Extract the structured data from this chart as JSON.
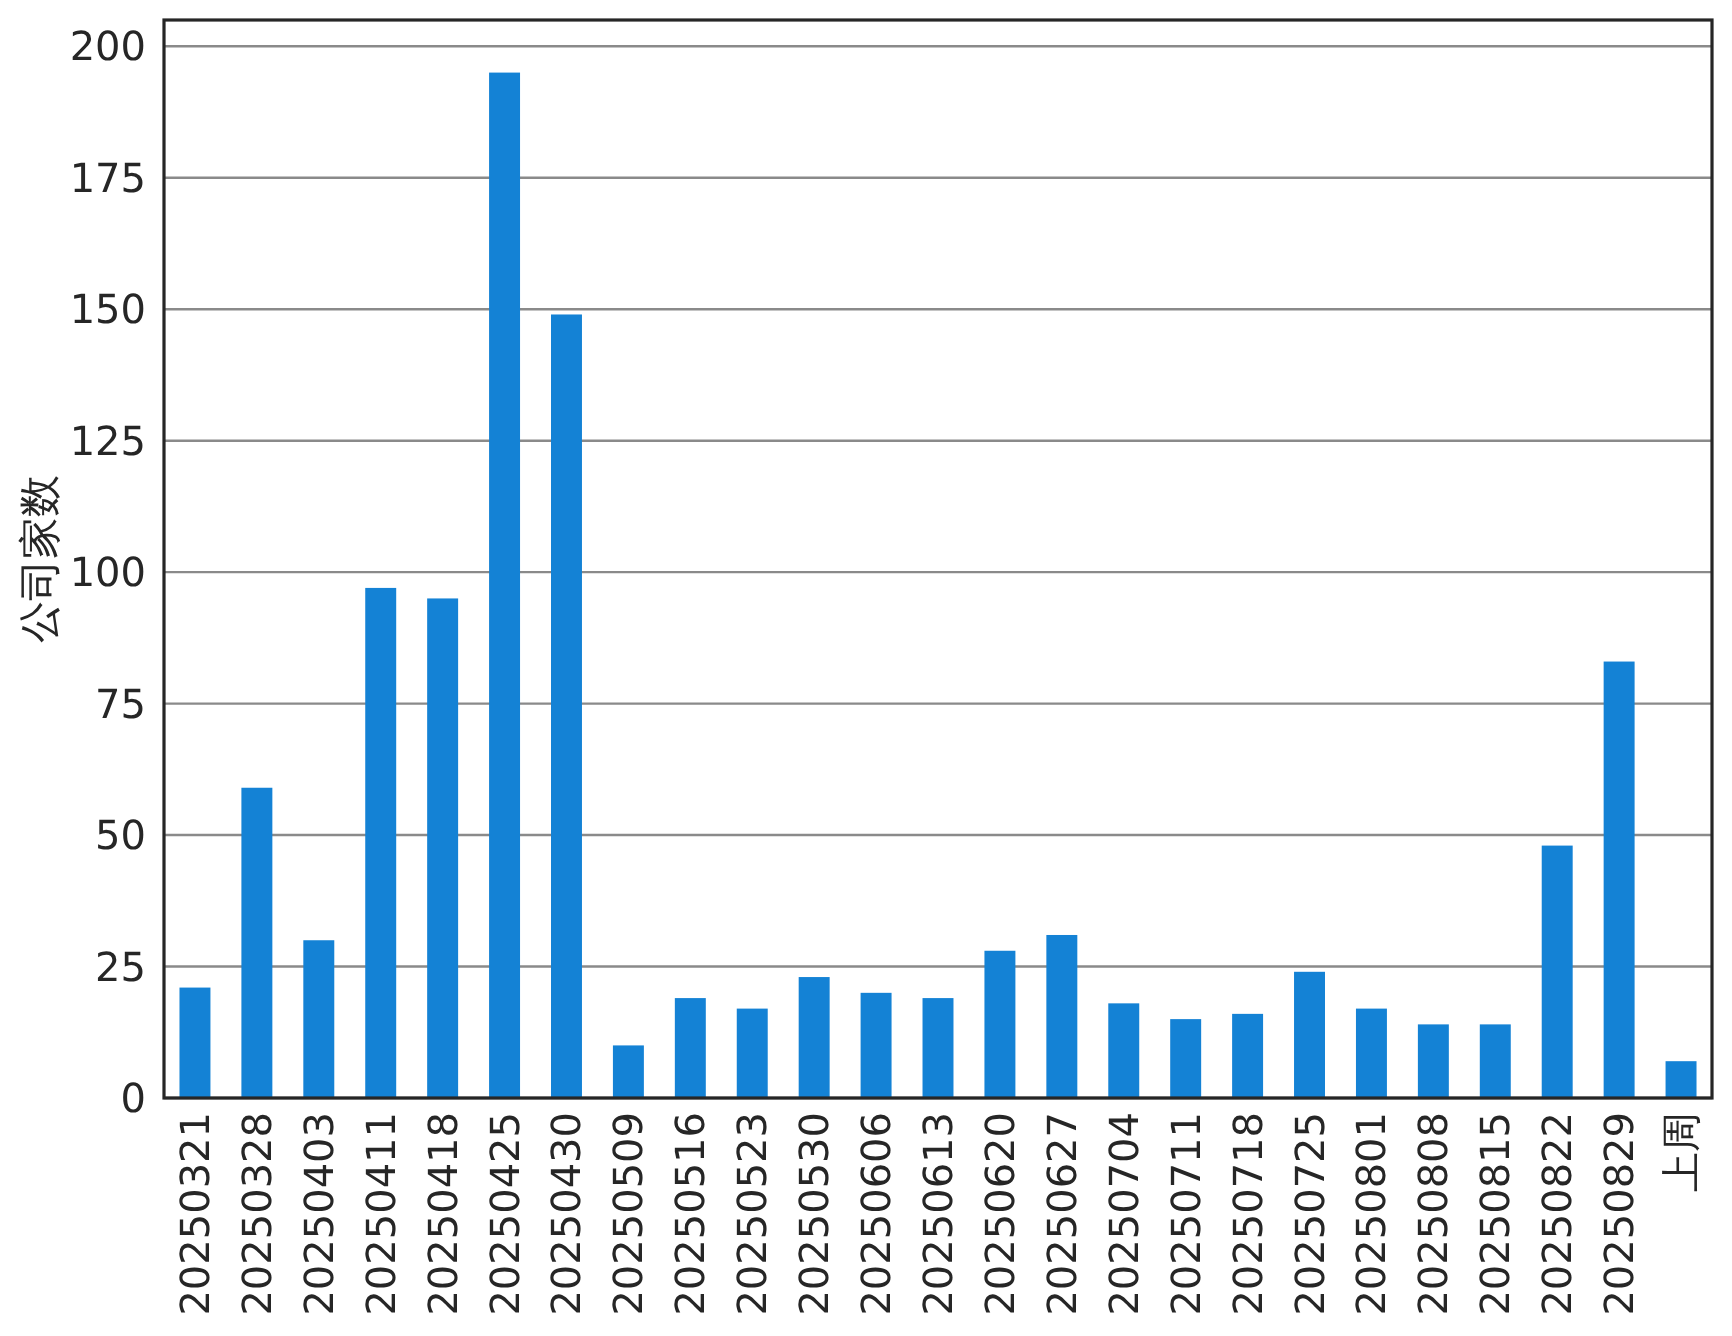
{
  "chart_data": {
    "type": "bar",
    "ylabel": "公司家数",
    "categories": [
      "20250321",
      "20250328",
      "20250403",
      "20250411",
      "20250418",
      "20250425",
      "20250430",
      "20250509",
      "20250516",
      "20250523",
      "20250530",
      "20250606",
      "20250613",
      "20250620",
      "20250627",
      "20250704",
      "20250711",
      "20250718",
      "20250725",
      "20250801",
      "20250808",
      "20250815",
      "20250822",
      "20250829",
      "上周"
    ],
    "values": [
      21,
      59,
      30,
      97,
      95,
      195,
      149,
      10,
      19,
      17,
      23,
      20,
      19,
      28,
      31,
      18,
      15,
      16,
      24,
      17,
      14,
      14,
      48,
      83,
      7
    ],
    "color": "#1482d5",
    "ylim": [
      0,
      205
    ],
    "yticks": [
      0,
      25,
      50,
      75,
      100,
      125,
      150,
      175,
      200
    ],
    "grid": "y"
  }
}
